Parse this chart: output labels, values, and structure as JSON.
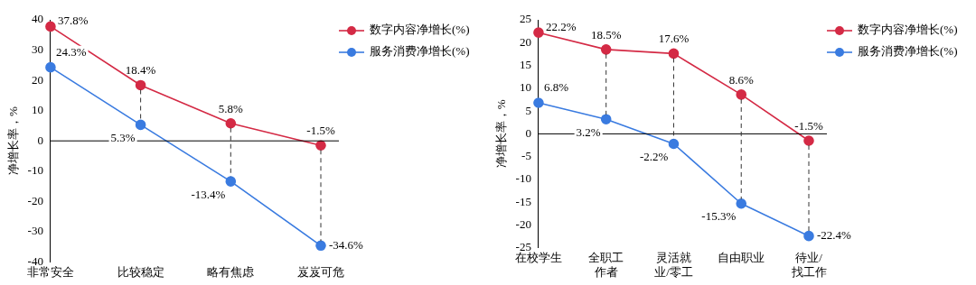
{
  "chart_data": [
    {
      "type": "line",
      "ylabel": "净增长率，%",
      "categories": [
        "非常安全",
        "比较稳定",
        "略有焦虑",
        "岌岌可危"
      ],
      "series": [
        {
          "name": "数字内容净增长(%)",
          "color": "#d42a45",
          "values": [
            37.8,
            18.4,
            5.8,
            -1.5
          ],
          "value_labels": [
            "37.8%",
            "18.4%",
            "5.8%",
            "-1.5%"
          ]
        },
        {
          "name": "服务消费净增长(%)",
          "color": "#3a7be0",
          "values": [
            24.3,
            5.3,
            -13.4,
            -34.6
          ],
          "value_labels": [
            "24.3%",
            "5.3%",
            "-13.4%",
            "-34.6%"
          ]
        }
      ],
      "ylim": [
        -40,
        40
      ],
      "yticks": [
        -40,
        -30,
        -20,
        -10,
        0,
        10,
        20,
        30,
        40
      ],
      "legend": "top right",
      "marker": "circle"
    },
    {
      "type": "line",
      "ylabel": "净增长率，%",
      "categories": [
        "在校学生",
        "全职工作者",
        "灵活就业/零工",
        "自由职业",
        "待业/找工作"
      ],
      "series": [
        {
          "name": "数字内容净增长(%)",
          "color": "#d42a45",
          "values": [
            22.2,
            18.5,
            17.6,
            8.6,
            -1.5
          ],
          "value_labels": [
            "22.2%",
            "18.5%",
            "17.6%",
            "8.6%",
            "-1.5%"
          ]
        },
        {
          "name": "服务消费净增长(%)",
          "color": "#3a7be0",
          "values": [
            6.8,
            3.2,
            -2.2,
            -15.3,
            -22.4
          ],
          "value_labels": [
            "6.8%",
            "3.2%",
            "-2.2%",
            "-15.3%",
            "-22.4%"
          ]
        }
      ],
      "ylim": [
        -25,
        25
      ],
      "yticks": [
        -25,
        -20,
        -15,
        -10,
        -5,
        0,
        5,
        10,
        15,
        20,
        25
      ],
      "legend": "top right",
      "marker": "circle"
    }
  ]
}
